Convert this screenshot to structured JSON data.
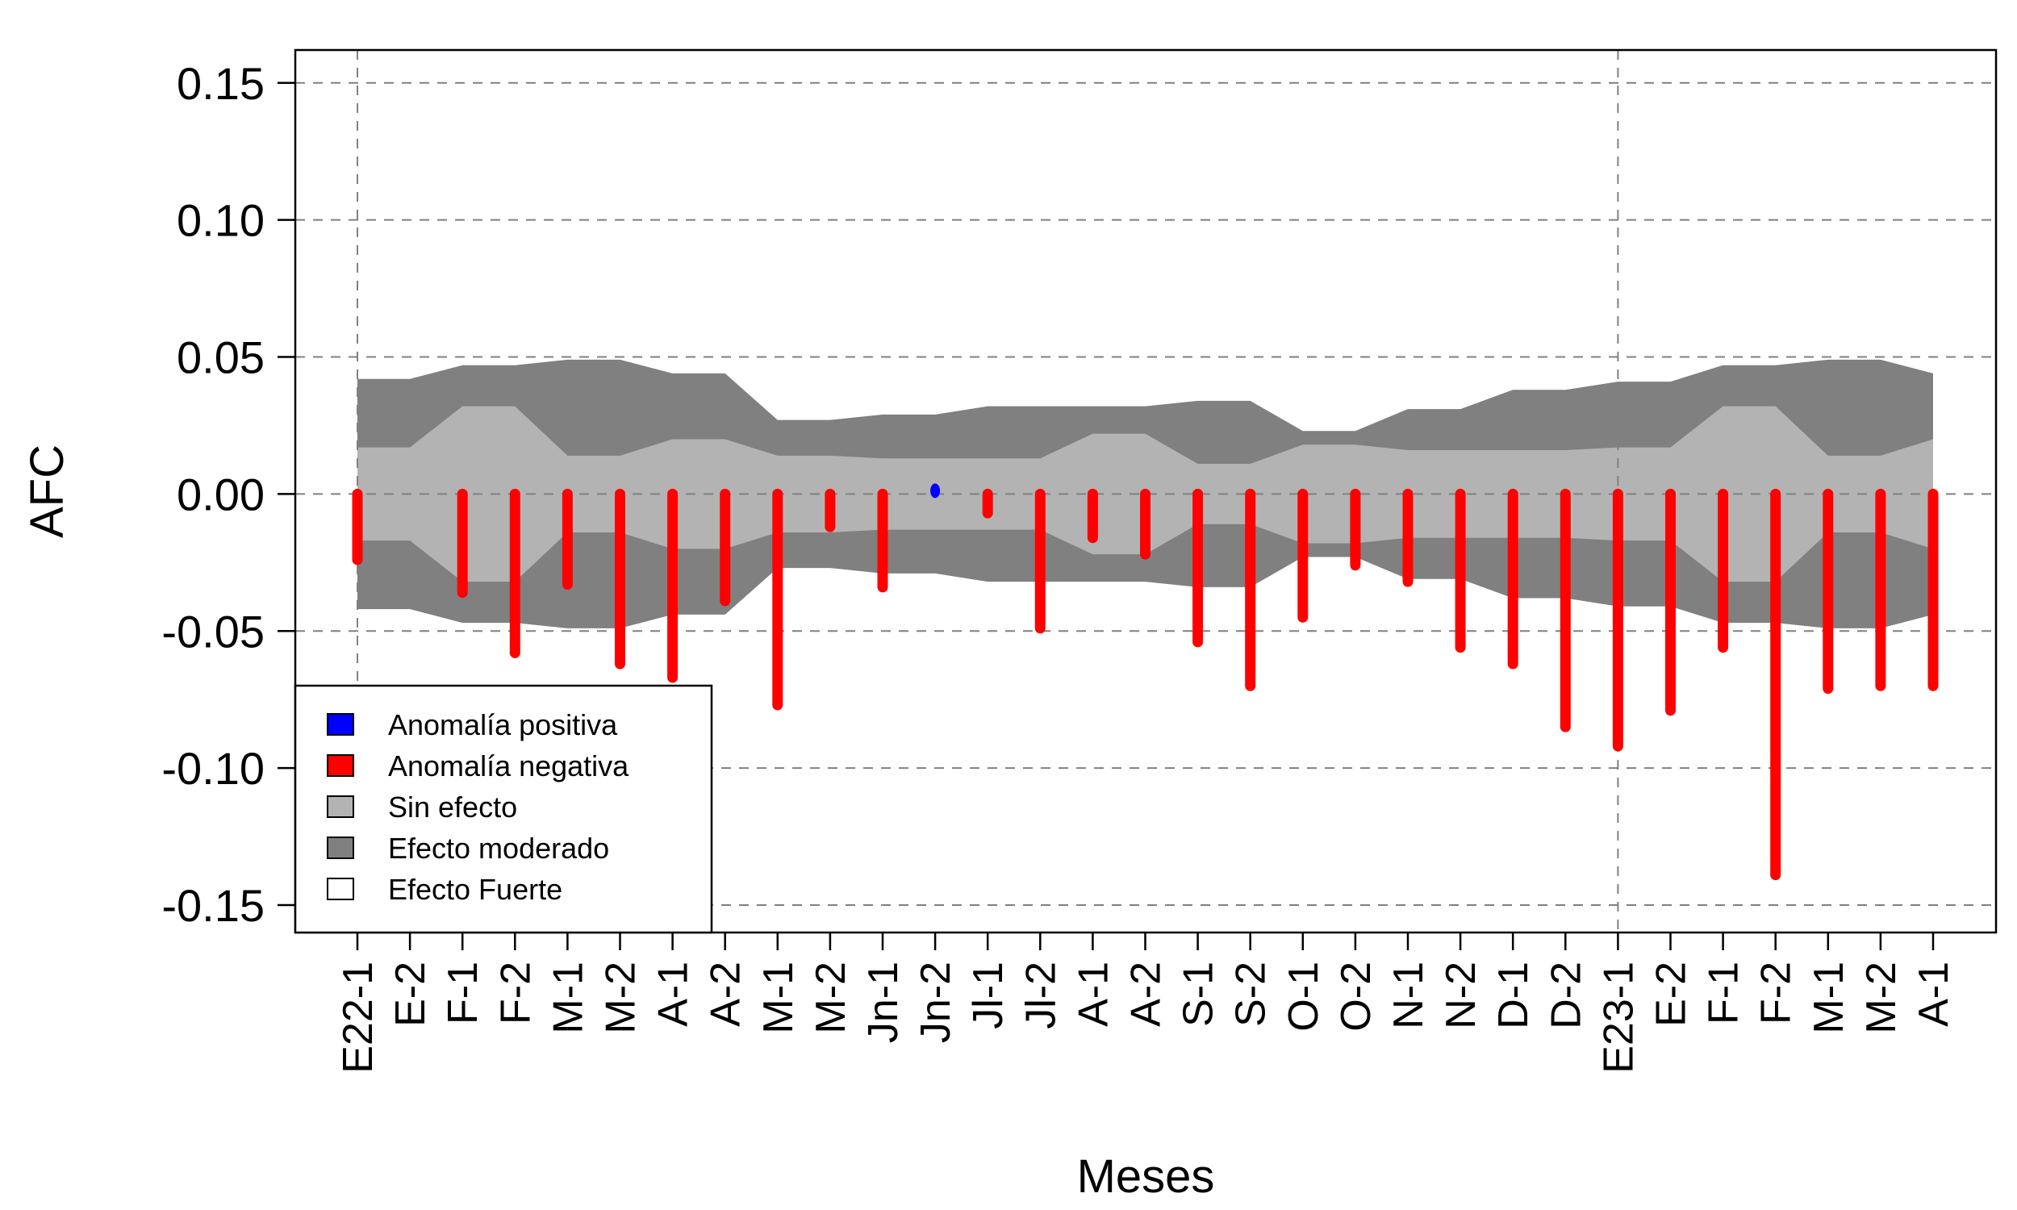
{
  "chart_data": {
    "type": "bar",
    "xlabel": "Meses",
    "ylabel": "AFC",
    "ylim": [
      -0.16,
      0.162
    ],
    "y_ticks": [
      0.15,
      0.1,
      0.05,
      0.0,
      -0.05,
      -0.1,
      -0.15
    ],
    "y_tick_labels": [
      "0.15",
      "0.10",
      "0.05",
      "0.00",
      "-0.05",
      "-0.10",
      "-0.15"
    ],
    "grid": true,
    "vertical_reference_lines_at": [
      "E22-1",
      "E23-1"
    ],
    "categories": [
      "E22-1",
      "E-2",
      "F-1",
      "F-2",
      "M-1",
      "M-2",
      "A-1",
      "A-2",
      "M-1",
      "M-2",
      "Jn-1",
      "Jn-2",
      "Jl-1",
      "Jl-2",
      "A-1",
      "A-2",
      "S-1",
      "S-2",
      "O-1",
      "O-2",
      "N-1",
      "N-2",
      "D-1",
      "D-2",
      "E23-1",
      "E-2",
      "F-1",
      "F-2",
      "M-1",
      "M-2",
      "A-1"
    ],
    "values": [
      -0.024,
      null,
      -0.036,
      -0.058,
      -0.033,
      -0.062,
      -0.067,
      -0.039,
      -0.077,
      -0.012,
      -0.034,
      0.001,
      -0.007,
      -0.049,
      -0.016,
      -0.022,
      -0.054,
      -0.07,
      -0.045,
      -0.026,
      -0.032,
      -0.056,
      -0.062,
      -0.085,
      -0.092,
      -0.079,
      -0.056,
      -0.139,
      -0.071,
      -0.07,
      -0.07
    ],
    "bands": {
      "sin_efecto": [
        0.017,
        0.017,
        0.032,
        0.032,
        0.014,
        0.014,
        0.02,
        0.02,
        0.014,
        0.014,
        0.013,
        0.013,
        0.013,
        0.013,
        0.022,
        0.022,
        0.011,
        0.011,
        0.018,
        0.018,
        0.016,
        0.016,
        0.016,
        0.016,
        0.017,
        0.017,
        0.032,
        0.032,
        0.014,
        0.014,
        0.02
      ],
      "efecto_moderado": [
        0.042,
        0.042,
        0.047,
        0.047,
        0.049,
        0.049,
        0.044,
        0.044,
        0.027,
        0.027,
        0.029,
        0.029,
        0.032,
        0.032,
        0.032,
        0.032,
        0.034,
        0.034,
        0.023,
        0.023,
        0.031,
        0.031,
        0.038,
        0.038,
        0.041,
        0.041,
        0.047,
        0.047,
        0.049,
        0.049,
        0.044
      ]
    },
    "legend": {
      "position": "bottom-left",
      "entries": [
        {
          "label": "Anomalía positiva",
          "color": "#0000ff"
        },
        {
          "label": "Anomalía negativa",
          "color": "#ff0000"
        },
        {
          "label": "Sin efecto",
          "color": "#b3b3b3"
        },
        {
          "label": "Efecto moderado",
          "color": "#808080"
        },
        {
          "label": "Efecto Fuerte",
          "color": "#ffffff"
        }
      ]
    },
    "colors": {
      "positive": "#0000ff",
      "negative": "#ff0000",
      "sin_efecto": "#b3b3b3",
      "moderado": "#808080",
      "grid": "#808080"
    }
  }
}
